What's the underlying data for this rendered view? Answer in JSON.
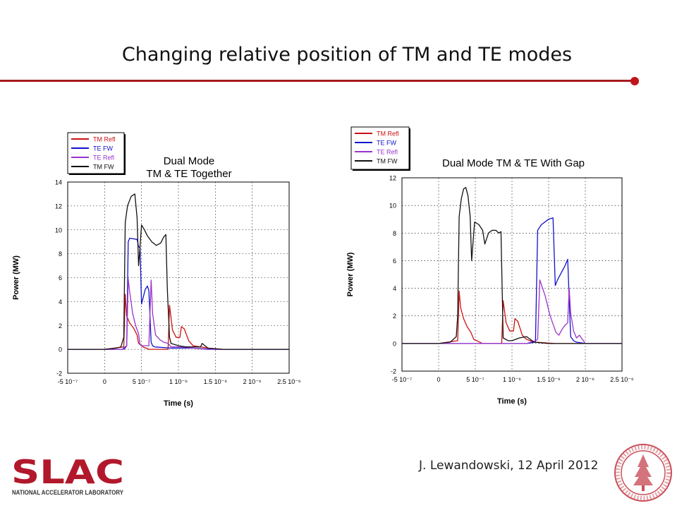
{
  "slide": {
    "title": "Changing relative position of TM and TE modes",
    "credit": "J.  Lewandowski, 12 April 2012",
    "logo_text": "SLAC",
    "logo_subtext": "NATIONAL ACCELERATOR LABORATORY",
    "accent_color": "#a8191e",
    "seal_icon": "university-seal-icon"
  },
  "chart_data": [
    {
      "type": "line",
      "title_lines": [
        "Dual Mode",
        "TM & TE Together"
      ],
      "xlabel": "Time (s)",
      "ylabel": "Power (MW)",
      "xlim": [
        -5e-07,
        2.5e-06
      ],
      "ylim": [
        -2,
        14
      ],
      "x_ticks": [
        -5e-07,
        0,
        5e-07,
        1e-06,
        1.5e-06,
        2e-06,
        2.5e-06
      ],
      "x_tick_labels": [
        "-5 10⁻⁷",
        "0",
        "5 10⁻⁷",
        "1 10⁻⁶",
        "1.5 10⁻⁶",
        "2 10⁻⁶",
        "2.5 10⁻⁶"
      ],
      "y_ticks": [
        -2,
        0,
        2,
        4,
        6,
        8,
        10,
        12,
        14
      ],
      "y_tick_labels": [
        "-2",
        "0",
        "2",
        "4",
        "6",
        "8",
        "10",
        "12",
        "14"
      ],
      "grid": true,
      "legend_position": "top-left",
      "series": [
        {
          "name": "TM Refl",
          "color": "#cc1111",
          "x": [
            -5e-07,
            0,
            2.6e-07,
            2.8e-07,
            3e-07,
            3.4e-07,
            3.9e-07,
            4.4e-07,
            4.6e-07,
            4.8e-07,
            5.2e-07,
            5.6e-07,
            6e-07,
            8.6e-07,
            8.8e-07,
            9.2e-07,
            9.7e-07,
            1.02e-06,
            1.04e-06,
            1.08e-06,
            1.14e-06,
            1.2e-06,
            1.3e-06,
            1.4e-06,
            1.6e-06,
            2.5e-06
          ],
          "y": [
            0,
            0,
            0.2,
            4.6,
            2.8,
            2.2,
            1.8,
            1.2,
            0.5,
            0.4,
            0.2,
            0.1,
            0,
            0,
            3.7,
            1.6,
            1.0,
            1.0,
            1.9,
            1.7,
            0.7,
            0.3,
            0.2,
            0.1,
            0,
            0
          ]
        },
        {
          "name": "TE FW",
          "color": "#1111cc",
          "x": [
            -5e-07,
            0,
            1.6e-07,
            2.4e-07,
            3e-07,
            3.2e-07,
            3.4e-07,
            4.4e-07,
            4.6e-07,
            4.8e-07,
            5e-07,
            5.5e-07,
            5.8e-07,
            6e-07,
            6.3e-07,
            6.5e-07,
            6.8e-07,
            9e-07,
            1e-06,
            1.2e-06,
            1.4e-06,
            1.6e-06,
            2.5e-06
          ],
          "y": [
            0,
            0,
            0,
            0,
            0.3,
            9.0,
            9.3,
            9.2,
            8.6,
            8.5,
            3.8,
            5.0,
            5.3,
            4.9,
            0.6,
            0.3,
            0.2,
            0.1,
            0.1,
            0.1,
            0,
            0,
            0
          ]
        },
        {
          "name": "TE Refl",
          "color": "#9933cc",
          "x": [
            -5e-07,
            0,
            2.7e-07,
            3e-07,
            3.2e-07,
            3.4e-07,
            3.8e-07,
            4.2e-07,
            4.6e-07,
            4.8e-07,
            5e-07,
            5.4e-07,
            6e-07,
            6.3e-07,
            6.5e-07,
            6.9e-07,
            7.5e-07,
            8e-07,
            8.6e-07,
            9e-07,
            1e-06,
            1.2e-06,
            1.5e-06,
            2.5e-06
          ],
          "y": [
            0,
            0,
            0,
            0.3,
            5.9,
            4.8,
            3.0,
            2.0,
            1.3,
            0.4,
            0.3,
            0.3,
            0.3,
            5.8,
            3.0,
            1.2,
            0.8,
            0.6,
            0.5,
            0.2,
            0.2,
            0.1,
            0,
            0
          ]
        },
        {
          "name": "TM FW",
          "color": "#111111",
          "x": [
            -5e-07,
            0,
            1.6e-07,
            2.2e-07,
            2.6e-07,
            2.8e-07,
            3.1e-07,
            3.6e-07,
            4.1e-07,
            4.4e-07,
            4.6e-07,
            4.8e-07,
            5e-07,
            5.4e-07,
            5.8e-07,
            6.4e-07,
            7e-07,
            7.6e-07,
            8e-07,
            8.3e-07,
            8.5e-07,
            8.8e-07,
            9e-07,
            1e-06,
            1.1e-06,
            1.2e-06,
            1.3e-06,
            1.32e-06,
            1.4e-06,
            1.6e-06,
            2.5e-06
          ],
          "y": [
            0,
            0,
            0.1,
            0.2,
            1.0,
            10.6,
            12.0,
            12.8,
            13.0,
            11.0,
            7.0,
            8.6,
            10.4,
            10.0,
            9.5,
            9.0,
            8.7,
            8.9,
            9.4,
            9.6,
            5.0,
            1.0,
            0.5,
            0.3,
            0.2,
            0.2,
            0.2,
            0.5,
            0.1,
            0,
            0
          ]
        }
      ]
    },
    {
      "type": "line",
      "title_lines": [
        "Dual Mode TM & TE With Gap"
      ],
      "xlabel": "Time (s)",
      "ylabel": "Power (MW)",
      "xlim": [
        -5e-07,
        2.5e-06
      ],
      "ylim": [
        -2,
        12
      ],
      "x_ticks": [
        -5e-07,
        0,
        5e-07,
        1e-06,
        1.5e-06,
        2e-06,
        2.5e-06
      ],
      "x_tick_labels": [
        "-5 10⁻⁷",
        "0",
        "5 10⁻⁷",
        "1 10⁻⁶",
        "1.5 10⁻⁶",
        "2 10⁻⁶",
        "2.5 10⁻⁶"
      ],
      "y_ticks": [
        -2,
        0,
        2,
        4,
        6,
        8,
        10,
        12
      ],
      "y_tick_labels": [
        "-2",
        "0",
        "2",
        "4",
        "6",
        "8",
        "10",
        "12"
      ],
      "grid": true,
      "legend_position": "top-left",
      "series": [
        {
          "name": "TM Refl",
          "color": "#cc1111",
          "x": [
            -5e-07,
            0,
            2.6e-07,
            2.8e-07,
            3e-07,
            3.4e-07,
            3.9e-07,
            4.4e-07,
            4.8e-07,
            5.2e-07,
            5.6e-07,
            6e-07,
            8.6e-07,
            8.8e-07,
            9.2e-07,
            9.7e-07,
            1.02e-06,
            1.04e-06,
            1.08e-06,
            1.14e-06,
            1.2e-06,
            1.3e-06,
            1.6e-06,
            2.5e-06
          ],
          "y": [
            0,
            0,
            0.2,
            3.8,
            2.6,
            1.8,
            1.2,
            0.8,
            0.3,
            0.2,
            0.1,
            0,
            0,
            3.1,
            1.5,
            0.9,
            0.9,
            1.8,
            1.6,
            0.6,
            0.3,
            0.1,
            0,
            0
          ]
        },
        {
          "name": "TE FW",
          "color": "#1111cc",
          "x": [
            -5e-07,
            0,
            1.2e-06,
            1.32e-06,
            1.35e-06,
            1.4e-06,
            1.5e-06,
            1.56e-06,
            1.59e-06,
            1.62e-06,
            1.68e-06,
            1.72e-06,
            1.76e-06,
            1.8e-06,
            1.84e-06,
            1.88e-06,
            2e-06,
            2.5e-06
          ],
          "y": [
            0,
            0,
            0,
            0.1,
            8.2,
            8.6,
            9.0,
            9.1,
            4.2,
            4.6,
            5.2,
            5.6,
            6.1,
            0.5,
            0.2,
            0.1,
            0,
            0
          ]
        },
        {
          "name": "TE Refl",
          "color": "#9933cc",
          "x": [
            -5e-07,
            0,
            1.2e-06,
            1.32e-06,
            1.35e-06,
            1.38e-06,
            1.45e-06,
            1.52e-06,
            1.6e-06,
            1.64e-06,
            1.68e-06,
            1.72e-06,
            1.76e-06,
            1.78e-06,
            1.8e-06,
            1.84e-06,
            1.88e-06,
            1.92e-06,
            2e-06,
            2.5e-06
          ],
          "y": [
            0,
            0,
            0,
            0.2,
            0.3,
            4.6,
            3.5,
            2.0,
            0.8,
            0.6,
            1.0,
            1.3,
            1.5,
            4.0,
            2.2,
            0.9,
            0.4,
            0.6,
            0,
            0
          ]
        },
        {
          "name": "TM FW",
          "color": "#111111",
          "x": [
            -5e-07,
            0,
            1.6e-07,
            2.4e-07,
            2.6e-07,
            2.8e-07,
            3.1e-07,
            3.4e-07,
            3.7e-07,
            4e-07,
            4.3e-07,
            4.5e-07,
            4.9e-07,
            5.5e-07,
            6e-07,
            6.3e-07,
            6.8e-07,
            7.3e-07,
            7.8e-07,
            8.2e-07,
            8.5e-07,
            8.8e-07,
            9.5e-07,
            1e-06,
            1.1e-06,
            1.2e-06,
            1.3e-06,
            1.5e-06,
            2.5e-06
          ],
          "y": [
            0,
            0,
            0.1,
            0.5,
            2.0,
            9.2,
            10.5,
            11.2,
            11.3,
            10.7,
            9.2,
            6.0,
            8.8,
            8.6,
            8.2,
            7.2,
            8.0,
            8.2,
            8.2,
            8.0,
            8.1,
            0.4,
            0.2,
            0.2,
            0.4,
            0.5,
            0.1,
            0,
            0
          ]
        }
      ]
    }
  ]
}
